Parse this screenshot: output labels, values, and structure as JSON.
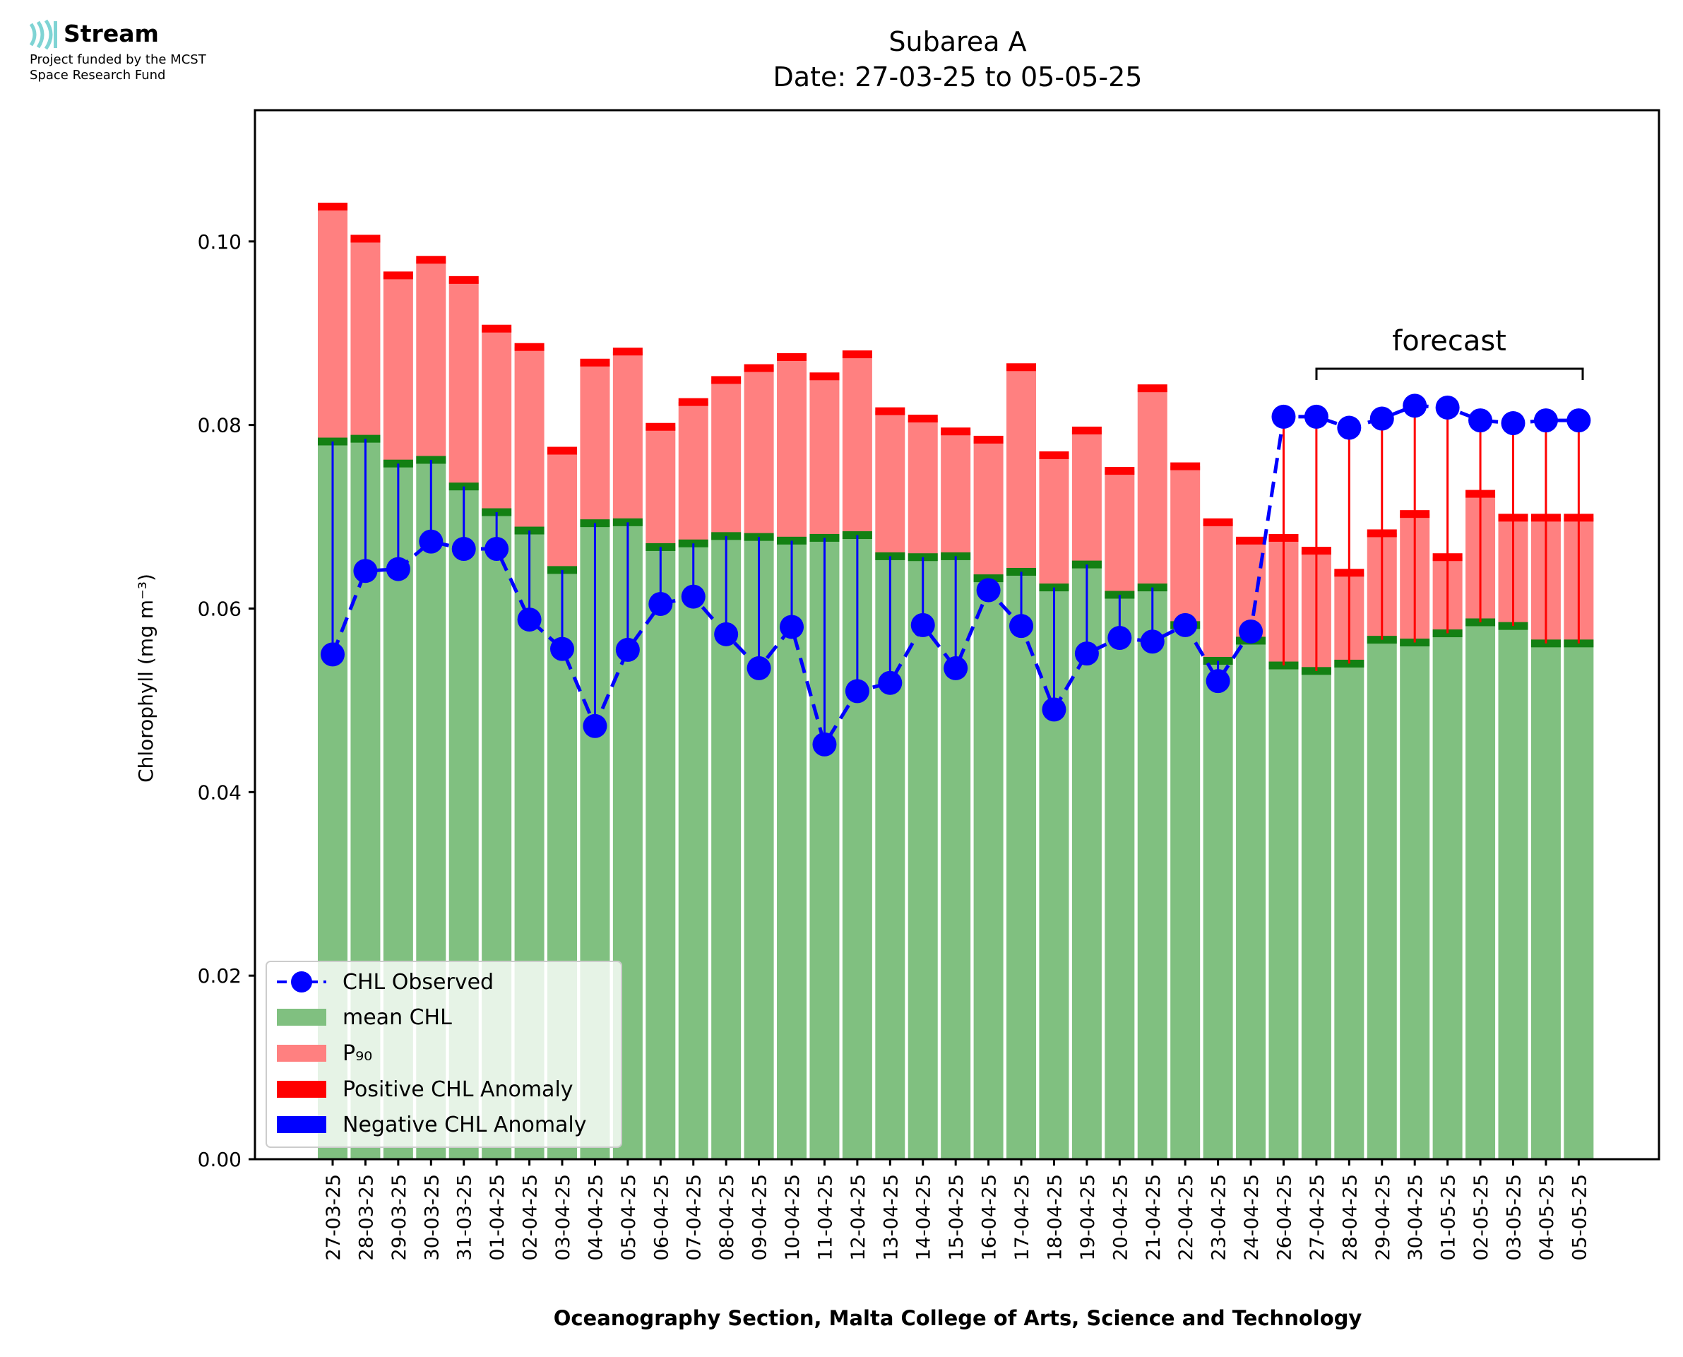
{
  "logo": {
    "name": "Stream",
    "line1": "Project funded by the MCST",
    "line2": "Space Research Fund",
    "icon": "stream-waves-icon",
    "color": "#7fd4d4"
  },
  "chart_data": {
    "type": "bar",
    "title": "Subarea A",
    "subtitle": "Date: 27-03-25 to 05-05-25",
    "xlabel": "Oceanography Section, Malta College of Arts, Science and Technology",
    "ylabel": "Chlorophyll (mg m⁻³)",
    "ylim": [
      0,
      0.1143
    ],
    "yticks": [
      "0.00",
      "0.02",
      "0.04",
      "0.06",
      "0.08",
      "0.10"
    ],
    "grid": false,
    "legend_position": "bottom-left",
    "annotation": "forecast",
    "forecast_start": "27-04-25",
    "forecast_end": "05-05-25",
    "categories": [
      "27-03-25",
      "28-03-25",
      "29-03-25",
      "30-03-25",
      "31-03-25",
      "01-04-25",
      "02-04-25",
      "03-04-25",
      "04-04-25",
      "05-04-25",
      "06-04-25",
      "07-04-25",
      "08-04-25",
      "09-04-25",
      "10-04-25",
      "11-04-25",
      "12-04-25",
      "13-04-25",
      "14-04-25",
      "15-04-25",
      "16-04-25",
      "17-04-25",
      "18-04-25",
      "19-04-25",
      "20-04-25",
      "21-04-25",
      "22-04-25",
      "23-04-25",
      "24-04-25",
      "26-04-25",
      "27-04-25",
      "28-04-25",
      "29-04-25",
      "30-04-25",
      "01-05-25",
      "02-05-25",
      "03-05-25",
      "04-05-25",
      "05-05-25"
    ],
    "series": [
      {
        "name": "CHL Observed",
        "color": "#0000ff",
        "values": [
          0.055,
          0.0641,
          0.0643,
          0.0673,
          0.0665,
          0.0665,
          0.0588,
          0.0556,
          0.0472,
          0.0555,
          0.0605,
          0.0613,
          0.0572,
          0.0535,
          0.058,
          0.0452,
          0.051,
          0.0519,
          0.0582,
          0.0535,
          0.062,
          0.0581,
          0.049,
          0.0551,
          0.0568,
          0.0564,
          0.0582,
          0.0521,
          0.0575,
          0.0809,
          0.0809,
          0.0797,
          0.0807,
          0.0821,
          0.0819,
          0.0805,
          0.0802,
          0.0805,
          0.0805
        ]
      },
      {
        "name": "mean CHL",
        "color": "#80c080",
        "values": [
          0.0782,
          0.0785,
          0.0758,
          0.0762,
          0.0733,
          0.0705,
          0.0685,
          0.0642,
          0.0693,
          0.0694,
          0.0667,
          0.0671,
          0.0679,
          0.0678,
          0.0674,
          0.0677,
          0.068,
          0.0657,
          0.0656,
          0.0657,
          0.0633,
          0.064,
          0.0623,
          0.0648,
          0.0615,
          0.0623,
          0.0582,
          0.0543,
          0.0565,
          0.0538,
          0.0532,
          0.054,
          0.0566,
          0.0563,
          0.0573,
          0.0585,
          0.0581,
          0.0562,
          0.0562
        ]
      },
      {
        "name": "P₉₀",
        "color": "#ff8080",
        "values": [
          0.1038,
          0.1003,
          0.0963,
          0.098,
          0.0958,
          0.0905,
          0.0885,
          0.0772,
          0.0868,
          0.088,
          0.0798,
          0.0825,
          0.0849,
          0.0862,
          0.0874,
          0.0853,
          0.0877,
          0.0815,
          0.0807,
          0.0793,
          0.0784,
          0.0863,
          0.0767,
          0.0794,
          0.075,
          0.084,
          0.0755,
          0.0694,
          0.0674,
          0.0677,
          0.0663,
          0.0639,
          0.0682,
          0.0703,
          0.0656,
          0.0725,
          0.0699,
          0.0699,
          0.0699
        ]
      },
      {
        "name": "Positive CHL Anomaly",
        "color": "#ff0000"
      },
      {
        "name": "Negative CHL Anomaly",
        "color": "#0000ff"
      }
    ]
  }
}
